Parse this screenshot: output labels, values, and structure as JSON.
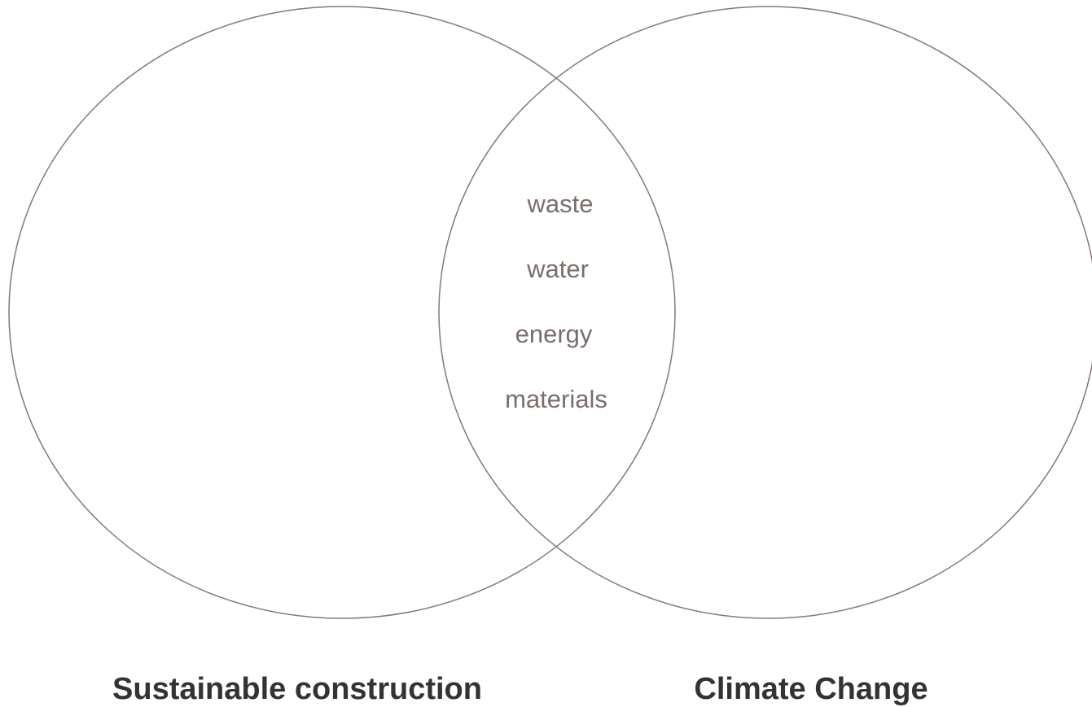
{
  "sets": [
    {
      "label": "Sustainable construction"
    },
    {
      "label": "Climate Change"
    }
  ],
  "intersection": [
    "waste",
    "water",
    "energy",
    "materials"
  ]
}
